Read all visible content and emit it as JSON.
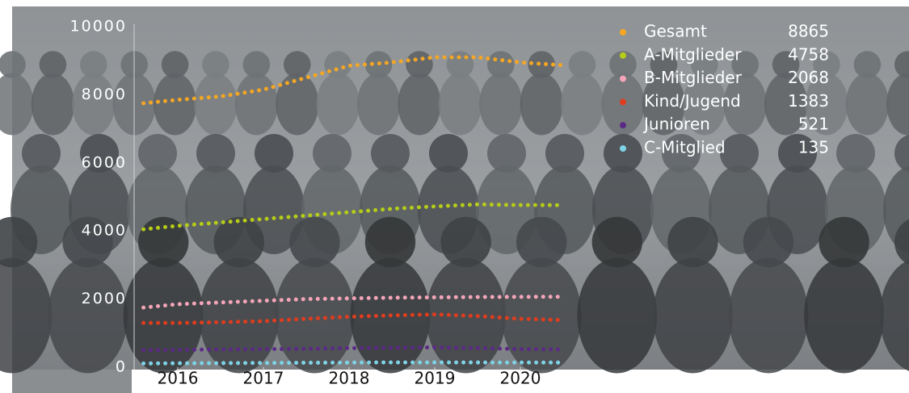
{
  "chart_data": {
    "type": "line",
    "x": [
      2015.6,
      2016,
      2016.5,
      2017,
      2017.5,
      2018,
      2018.5,
      2019,
      2019.5,
      2020,
      2020.5
    ],
    "series": [
      {
        "name": "Gesamt",
        "color": "#f5a623",
        "values": [
          7750,
          7850,
          7950,
          8150,
          8500,
          8850,
          8950,
          9100,
          9100,
          8950,
          8865
        ]
      },
      {
        "name": "A-Mitglieder",
        "color": "#b5cc18",
        "values": [
          4050,
          4150,
          4250,
          4350,
          4450,
          4550,
          4650,
          4720,
          4780,
          4760,
          4758
        ]
      },
      {
        "name": "B-Mitglieder",
        "color": "#f4a6b8",
        "values": [
          1750,
          1850,
          1900,
          1950,
          2000,
          2020,
          2040,
          2050,
          2060,
          2065,
          2068
        ]
      },
      {
        "name": "Kind/Jugend",
        "color": "#e03c1e",
        "values": [
          1300,
          1300,
          1320,
          1350,
          1420,
          1480,
          1520,
          1550,
          1500,
          1420,
          1383
        ]
      },
      {
        "name": "Junioren",
        "color": "#5b2a86",
        "values": [
          500,
          510,
          520,
          530,
          540,
          560,
          570,
          580,
          560,
          530,
          521
        ]
      },
      {
        "name": "C-Mitglied",
        "color": "#7fd3e6",
        "values": [
          110,
          115,
          120,
          125,
          130,
          135,
          140,
          140,
          138,
          136,
          135
        ]
      }
    ],
    "xlim": [
      2015.5,
      2020.5
    ],
    "xticks": [
      2016,
      2017,
      2018,
      2019,
      2020
    ],
    "ylim": [
      0,
      10000
    ],
    "yticks": [
      0,
      2000,
      4000,
      6000,
      8000,
      10000
    ]
  }
}
